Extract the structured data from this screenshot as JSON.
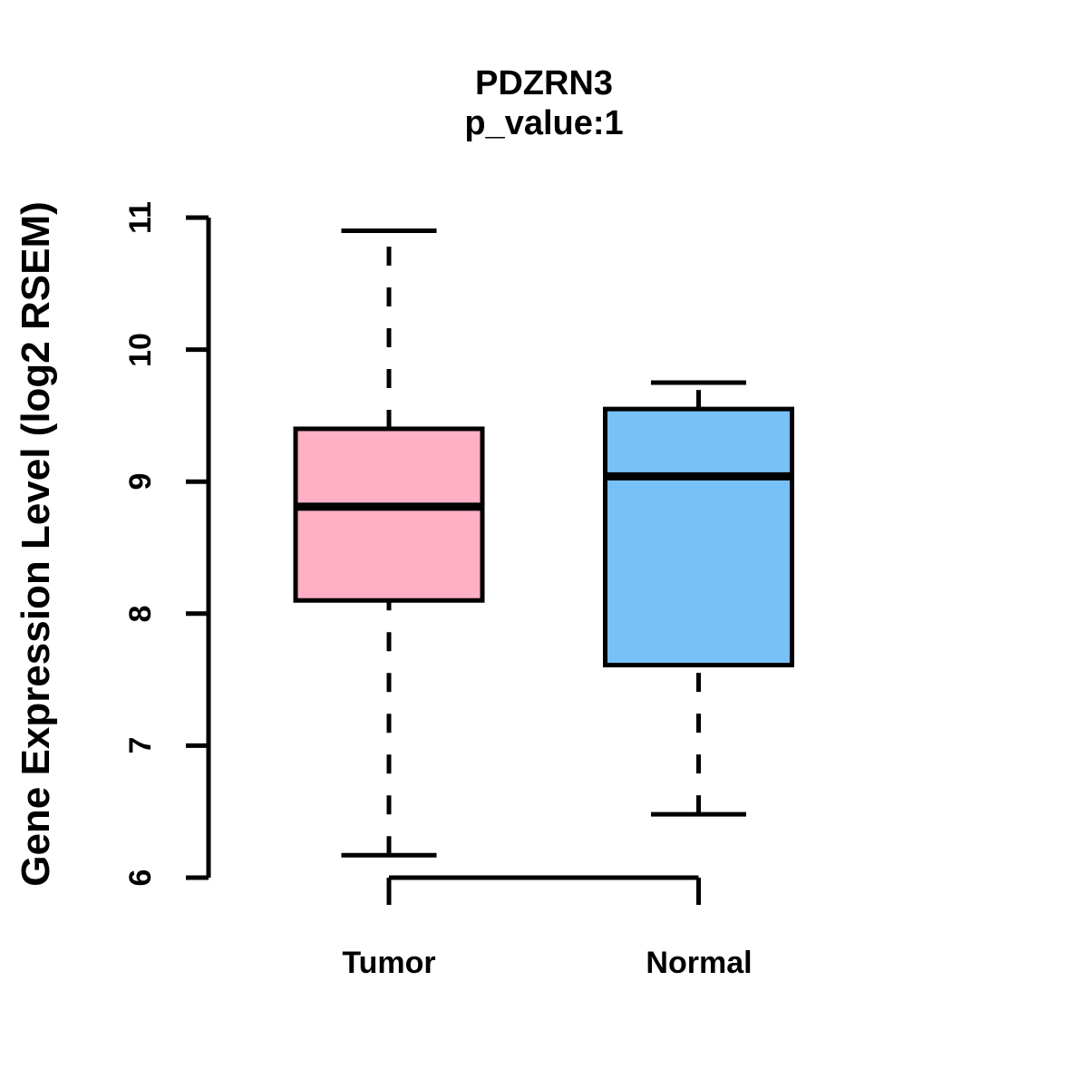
{
  "chart_data": {
    "type": "boxplot",
    "title": "PDZRN3",
    "subtitle": "p_value:1",
    "ylabel": "Gene Expression Level (log2 RSEM)",
    "xlabel": "",
    "categories": [
      "Tumor",
      "Normal"
    ],
    "ylim": [
      6,
      11
    ],
    "yticks": [
      6,
      7,
      8,
      9,
      10,
      11
    ],
    "grid": false,
    "legend": "none",
    "background": "#FFFFFF",
    "box_edge_color": "#000000",
    "series": [
      {
        "name": "Tumor",
        "color": "#FFB0C5",
        "whisker_low": 6.17,
        "q1": 8.1,
        "median": 8.81,
        "q3": 9.4,
        "whisker_high": 10.9
      },
      {
        "name": "Normal",
        "color": "#78C0F8",
        "whisker_low": 6.48,
        "q1": 7.61,
        "median": 9.04,
        "q3": 9.55,
        "whisker_high": 9.75
      }
    ]
  }
}
